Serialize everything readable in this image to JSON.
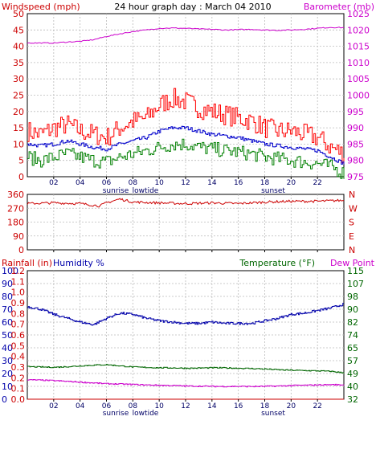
{
  "header": {
    "title": "24 hour graph day : March 04 2010",
    "left_label": "Windspeed (mph)",
    "right_label": "Barometer (mb)"
  },
  "colors": {
    "wind": "#ff0000",
    "gust": "#0000cc",
    "windavg": "#008000",
    "baro": "#cc00cc",
    "humidity": "#0000aa",
    "temp": "#006600",
    "dew": "#cc00cc",
    "rain": "#cc0000",
    "grid": "#bbbbbb",
    "axis": "#000000"
  },
  "x_ticks": [
    "02",
    "04",
    "06",
    "08",
    "10",
    "12",
    "14",
    "16",
    "18",
    "20",
    "22"
  ],
  "markers": {
    "sunrise": "sunrise",
    "lowtide": "lowtide",
    "sunset": "sunset"
  },
  "chart_data": [
    {
      "type": "line",
      "name": "wind-barometer",
      "left_axis": {
        "label": "Windspeed (mph)",
        "ticks": [
          0,
          5,
          10,
          15,
          20,
          25,
          30,
          35,
          40,
          45,
          50
        ],
        "range": [
          0,
          50
        ]
      },
      "right_axis": {
        "label": "Barometer (mb)",
        "ticks": [
          975,
          980,
          985,
          990,
          995,
          1000,
          1005,
          1010,
          1015,
          1020,
          1025
        ],
        "range": [
          975,
          1025
        ]
      },
      "series": [
        {
          "key": "gust",
          "color": "#ff0000",
          "x": [
            0,
            1,
            2,
            3,
            4,
            5,
            6,
            7,
            8,
            9,
            10,
            11,
            12,
            13,
            14,
            15,
            16,
            17,
            18,
            19,
            20,
            21,
            22,
            23,
            24
          ],
          "y": [
            14,
            13,
            15,
            16,
            14,
            13,
            12,
            15,
            17,
            18,
            22,
            24,
            23,
            21,
            20,
            19,
            18,
            17,
            15,
            14,
            14,
            13,
            12,
            9,
            7
          ]
        },
        {
          "key": "average",
          "color": "#0000cc",
          "x": [
            0,
            1,
            2,
            3,
            4,
            5,
            6,
            7,
            8,
            9,
            10,
            11,
            12,
            13,
            14,
            15,
            16,
            17,
            18,
            19,
            20,
            21,
            22,
            23,
            24
          ],
          "y": [
            10,
            9.5,
            10,
            11,
            10,
            9,
            8.5,
            10,
            11,
            12,
            14,
            15,
            15,
            14,
            13,
            12.5,
            12,
            11,
            10,
            9.5,
            9,
            8.5,
            8,
            6,
            4
          ]
        },
        {
          "key": "windspeed",
          "color": "#008000",
          "x": [
            0,
            1,
            2,
            3,
            4,
            5,
            6,
            7,
            8,
            9,
            10,
            11,
            12,
            13,
            14,
            15,
            16,
            17,
            18,
            19,
            20,
            21,
            22,
            23,
            24
          ],
          "y": [
            6,
            5,
            6,
            7,
            6,
            5,
            4.5,
            6,
            7,
            8,
            9,
            10,
            10,
            9,
            8.5,
            8,
            7.5,
            7,
            6,
            5.5,
            5,
            4.5,
            4,
            3,
            1
          ]
        },
        {
          "key": "barometer",
          "color": "#cc00cc",
          "axis": "right",
          "x": [
            0,
            1,
            2,
            3,
            4,
            5,
            6,
            7,
            8,
            9,
            10,
            11,
            12,
            13,
            14,
            15,
            16,
            17,
            18,
            19,
            20,
            21,
            22,
            23,
            24
          ],
          "y": [
            1016,
            1016,
            1016,
            1016.3,
            1016.5,
            1017,
            1018,
            1018.8,
            1019.5,
            1020,
            1020.5,
            1020.6,
            1020.5,
            1020.3,
            1020.2,
            1020,
            1020.1,
            1020.2,
            1020,
            1019.9,
            1020,
            1020.2,
            1020.5,
            1020.8,
            1020.7
          ]
        }
      ]
    },
    {
      "type": "line",
      "name": "wind-direction",
      "left_axis": {
        "ticks": [
          0,
          90,
          180,
          270,
          360
        ],
        "range": [
          0,
          360
        ]
      },
      "right_axis": {
        "ticks": [
          "N",
          "W",
          "S",
          "E",
          "N"
        ]
      },
      "series": [
        {
          "key": "direction",
          "color": "#cc0000",
          "x": [
            0,
            2,
            4,
            5,
            5.5,
            6,
            7,
            8,
            10,
            12,
            14,
            16,
            18,
            20,
            22,
            23.5
          ],
          "y": [
            300,
            305,
            300,
            290,
            285,
            305,
            330,
            310,
            305,
            300,
            305,
            300,
            310,
            315,
            315,
            320
          ]
        }
      ]
    },
    {
      "type": "line",
      "name": "temp-humidity",
      "left_axis_rain": {
        "label": "Rainfall (in)",
        "ticks": [
          "0.0",
          "0.1",
          "0.2",
          "0.3",
          "0.4",
          "0.5",
          "0.6",
          "0.7",
          "0.8",
          "0.9",
          "1.0",
          "1.1",
          "1.2"
        ],
        "range": [
          0,
          1.2
        ]
      },
      "left_axis_humidity": {
        "label": "Humidity %",
        "ticks": [
          0,
          10,
          20,
          30,
          40,
          50,
          60,
          70,
          80,
          90,
          100
        ],
        "range": [
          0,
          100
        ]
      },
      "right_axis": {
        "label": "Temperature (°F)",
        "label2": "Dew Point",
        "ticks": [
          32,
          40,
          49,
          57,
          65,
          74,
          82,
          90,
          98,
          107,
          115
        ],
        "range": [
          32,
          115
        ]
      },
      "series": [
        {
          "key": "humidity",
          "color": "#0000aa",
          "axis": "humidity",
          "x": [
            0,
            1,
            2,
            3,
            4,
            5,
            6,
            7,
            8,
            9,
            10,
            11,
            12,
            13,
            14,
            15,
            16,
            17,
            18,
            19,
            20,
            21,
            22,
            23,
            24
          ],
          "y": [
            72,
            70,
            66,
            63,
            60,
            58,
            63,
            67,
            66,
            63,
            61,
            60,
            59,
            59,
            60,
            59,
            59,
            59,
            61,
            63,
            66,
            67,
            69,
            71,
            74
          ]
        },
        {
          "key": "temperature",
          "color": "#006600",
          "axis": "right",
          "x": [
            0,
            1,
            2,
            3,
            4,
            5,
            6,
            7,
            8,
            9,
            10,
            11,
            12,
            13,
            14,
            15,
            16,
            17,
            18,
            19,
            20,
            21,
            22,
            23,
            24
          ],
          "y": [
            53,
            52.8,
            52.6,
            53,
            53.5,
            54,
            54.3,
            53.5,
            52.8,
            52.5,
            52.3,
            52.2,
            52,
            52.1,
            52.3,
            52.2,
            52,
            51.8,
            51.5,
            51,
            50.7,
            50.5,
            50.3,
            50,
            49
          ]
        },
        {
          "key": "dewpoint",
          "color": "#cc00cc",
          "axis": "right",
          "x": [
            0,
            1,
            2,
            3,
            4,
            5,
            6,
            7,
            8,
            9,
            10,
            11,
            12,
            13,
            14,
            15,
            16,
            17,
            18,
            19,
            20,
            21,
            22,
            23,
            24
          ],
          "y": [
            44.5,
            44.3,
            44,
            43.5,
            43,
            42.5,
            42,
            41.8,
            41.5,
            41.2,
            41,
            40.8,
            40.5,
            40.4,
            40.3,
            40.2,
            40.3,
            40.2,
            40.3,
            40.5,
            40.8,
            41,
            41.2,
            41.4,
            41.2
          ]
        },
        {
          "key": "rainfall",
          "color": "#cc0000",
          "axis": "rain",
          "x": [
            0,
            24
          ],
          "y": [
            0,
            0
          ]
        }
      ]
    }
  ]
}
